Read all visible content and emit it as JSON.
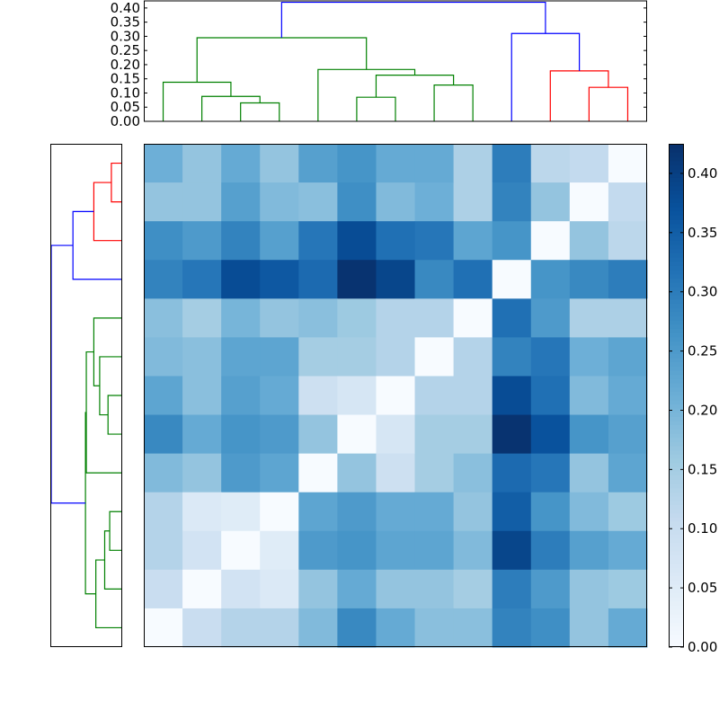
{
  "chart_data": {
    "type": "heatmap",
    "title": "",
    "leaf_count": 13,
    "matrix": [
      [
        0.21,
        0.17,
        0.22,
        0.17,
        0.24,
        0.26,
        0.22,
        0.22,
        0.14,
        0.3,
        0.12,
        0.11,
        0.0
      ],
      [
        0.17,
        0.17,
        0.24,
        0.19,
        0.18,
        0.27,
        0.19,
        0.21,
        0.14,
        0.29,
        0.17,
        0.0,
        0.11
      ],
      [
        0.27,
        0.25,
        0.29,
        0.24,
        0.31,
        0.38,
        0.32,
        0.31,
        0.23,
        0.26,
        0.0,
        0.17,
        0.12
      ],
      [
        0.29,
        0.31,
        0.38,
        0.36,
        0.33,
        0.42,
        0.39,
        0.28,
        0.32,
        0.0,
        0.26,
        0.28,
        0.3
      ],
      [
        0.18,
        0.15,
        0.2,
        0.17,
        0.18,
        0.16,
        0.13,
        0.13,
        0.0,
        0.32,
        0.25,
        0.14,
        0.14
      ],
      [
        0.19,
        0.18,
        0.23,
        0.23,
        0.15,
        0.15,
        0.13,
        0.0,
        0.13,
        0.29,
        0.31,
        0.21,
        0.23
      ],
      [
        0.23,
        0.18,
        0.24,
        0.22,
        0.09,
        0.07,
        0.0,
        0.13,
        0.13,
        0.38,
        0.32,
        0.19,
        0.22
      ],
      [
        0.28,
        0.22,
        0.26,
        0.25,
        0.17,
        0.0,
        0.07,
        0.15,
        0.15,
        0.42,
        0.37,
        0.26,
        0.24
      ],
      [
        0.19,
        0.17,
        0.25,
        0.23,
        0.0,
        0.17,
        0.09,
        0.15,
        0.18,
        0.33,
        0.31,
        0.17,
        0.23
      ],
      [
        0.13,
        0.06,
        0.05,
        0.0,
        0.23,
        0.25,
        0.22,
        0.22,
        0.17,
        0.35,
        0.26,
        0.19,
        0.16
      ],
      [
        0.13,
        0.08,
        0.0,
        0.05,
        0.25,
        0.26,
        0.23,
        0.23,
        0.19,
        0.39,
        0.3,
        0.24,
        0.22
      ],
      [
        0.1,
        0.0,
        0.08,
        0.06,
        0.17,
        0.22,
        0.17,
        0.17,
        0.15,
        0.3,
        0.25,
        0.17,
        0.16
      ],
      [
        0.0,
        0.1,
        0.13,
        0.13,
        0.19,
        0.28,
        0.22,
        0.18,
        0.18,
        0.29,
        0.27,
        0.17,
        0.22
      ]
    ],
    "colorbar": {
      "ticks": [
        "0.00",
        "0.05",
        "0.10",
        "0.15",
        "0.20",
        "0.25",
        "0.30",
        "0.35",
        "0.40"
      ],
      "range": [
        0,
        0.425
      ],
      "colormap": [
        "#f7fbff",
        "#deebf7",
        "#c6dbef",
        "#9ecae1",
        "#6baed6",
        "#4292c6",
        "#2171b5",
        "#08519c",
        "#08306b"
      ]
    },
    "top_dendrogram": {
      "yticks": [
        "0.00",
        "0.05",
        "0.10",
        "0.15",
        "0.20",
        "0.25",
        "0.30",
        "0.35",
        "0.40"
      ],
      "ylim": [
        0,
        0.425
      ],
      "links": [
        {
          "a": 2,
          "b": 3,
          "h": 0.065,
          "c": "green"
        },
        {
          "a": 1,
          "b": 2.5,
          "h": 0.088,
          "c": "green"
        },
        {
          "a": 0,
          "b": 1.75,
          "h": 0.138,
          "c": "green"
        },
        {
          "a": 5,
          "b": 6,
          "h": 0.085,
          "c": "green"
        },
        {
          "a": 7,
          "b": 8,
          "h": 0.128,
          "c": "green"
        },
        {
          "a": 5.5,
          "b": 7.5,
          "h": 0.163,
          "c": "green"
        },
        {
          "a": 4,
          "b": 6.5,
          "h": 0.183,
          "c": "green"
        },
        {
          "a": 0.875,
          "b": 5.25,
          "h": 0.295,
          "c": "green"
        },
        {
          "a": 11,
          "b": 12,
          "h": 0.12,
          "c": "red"
        },
        {
          "a": 10,
          "b": 11.5,
          "h": 0.178,
          "c": "red"
        },
        {
          "a": 9,
          "b": 10.75,
          "h": 0.31,
          "c": "blue"
        },
        {
          "a": 3.06,
          "b": 9.875,
          "h": 0.42,
          "c": "blue"
        }
      ]
    },
    "left_dendrogram": {
      "links": [
        {
          "a": 0,
          "b": 1,
          "h": 0.065,
          "c": "red"
        },
        {
          "a": 0.5,
          "b": 2,
          "h": 0.17,
          "c": "red"
        },
        {
          "a": 1.25,
          "b": 3,
          "h": 0.295,
          "c": "blue"
        },
        {
          "a": 7,
          "b": 6,
          "h": 0.085,
          "c": "green"
        },
        {
          "a": 5,
          "b": 6.5,
          "h": 0.135,
          "c": "green"
        },
        {
          "a": 4,
          "b": 5.75,
          "h": 0.17,
          "c": "green"
        },
        {
          "a": 8,
          "b": 4.875,
          "h": 0.215,
          "c": "green"
        },
        {
          "a": 9,
          "b": 10,
          "h": 0.075,
          "c": "green"
        },
        {
          "a": 11,
          "b": 9.5,
          "h": 0.105,
          "c": "green"
        },
        {
          "a": 12,
          "b": 10.25,
          "h": 0.158,
          "c": "green"
        },
        {
          "a": 6.44,
          "b": 11.125,
          "h": 0.22,
          "c": "green"
        },
        {
          "a": 2.125,
          "b": 8.78,
          "h": 0.425,
          "c": "blue"
        }
      ]
    },
    "link_colors": {
      "green": "#008000",
      "red": "#ff0000",
      "blue": "#0000ff"
    }
  }
}
